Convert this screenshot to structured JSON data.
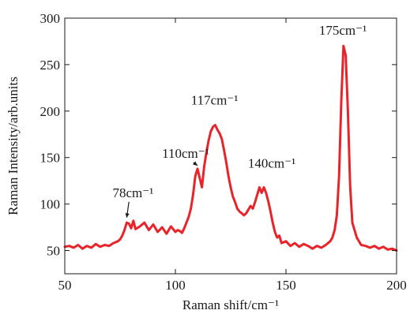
{
  "chart_data": {
    "type": "line",
    "title": "",
    "xlabel": "Raman shift/cm⁻¹",
    "ylabel": "Raman Intensity/arb.units",
    "xlim": [
      50,
      200
    ],
    "ylim": [
      25,
      300
    ],
    "xticks": [
      50,
      100,
      150,
      200
    ],
    "yticks": [
      50,
      100,
      150,
      200,
      250,
      300
    ],
    "grid": false,
    "legend": "none",
    "line_color": "#e8242a",
    "series": [
      {
        "x": [
          50,
          52,
          54,
          56,
          58,
          60,
          62,
          64,
          66,
          68,
          70,
          72,
          74,
          75,
          76,
          77,
          78,
          79,
          80,
          81,
          82,
          84,
          86,
          88,
          90,
          92,
          94,
          96,
          98,
          99,
          100,
          101,
          102,
          103,
          104,
          105,
          106,
          107,
          108,
          109,
          110,
          111,
          112,
          113,
          114,
          115,
          116,
          117,
          118,
          119,
          120,
          121,
          122,
          123,
          124,
          125,
          126,
          127,
          128,
          129,
          130,
          131,
          132,
          133,
          134,
          135,
          136,
          137,
          138,
          139,
          140,
          141,
          142,
          143,
          144,
          145,
          146,
          147,
          148,
          150,
          152,
          154,
          156,
          158,
          160,
          162,
          164,
          166,
          168,
          170,
          171,
          172,
          173,
          174,
          175,
          176,
          177,
          178,
          179,
          180,
          182,
          184,
          186,
          188,
          190,
          192,
          194,
          196,
          198,
          200
        ],
        "y": [
          54,
          55,
          53,
          56,
          52,
          55,
          53,
          57,
          54,
          56,
          55,
          58,
          60,
          62,
          66,
          72,
          80,
          79,
          74,
          82,
          73,
          76,
          80,
          72,
          78,
          70,
          75,
          68,
          76,
          73,
          70,
          72,
          71,
          69,
          74,
          80,
          86,
          95,
          110,
          130,
          138,
          128,
          118,
          140,
          155,
          168,
          178,
          183,
          185,
          180,
          176,
          170,
          158,
          145,
          130,
          118,
          108,
          102,
          95,
          92,
          90,
          88,
          90,
          94,
          98,
          95,
          102,
          110,
          118,
          112,
          118,
          112,
          103,
          92,
          80,
          70,
          64,
          66,
          58,
          60,
          55,
          58,
          54,
          57,
          55,
          52,
          55,
          53,
          56,
          60,
          64,
          72,
          88,
          130,
          210,
          270,
          260,
          200,
          120,
          80,
          64,
          56,
          55,
          53,
          55,
          52,
          54,
          51,
          52,
          50
        ]
      }
    ],
    "annotations": [
      {
        "label": "78cm⁻¹",
        "x": 78,
        "y": 82
      },
      {
        "label": "110cm⁻¹",
        "x": 110,
        "y": 138
      },
      {
        "label": "117cm⁻¹",
        "x": 117,
        "y": 185
      },
      {
        "label": "140cm⁻¹",
        "x": 140,
        "y": 118
      },
      {
        "label": "175cm⁻¹",
        "x": 175,
        "y": 272
      }
    ]
  }
}
